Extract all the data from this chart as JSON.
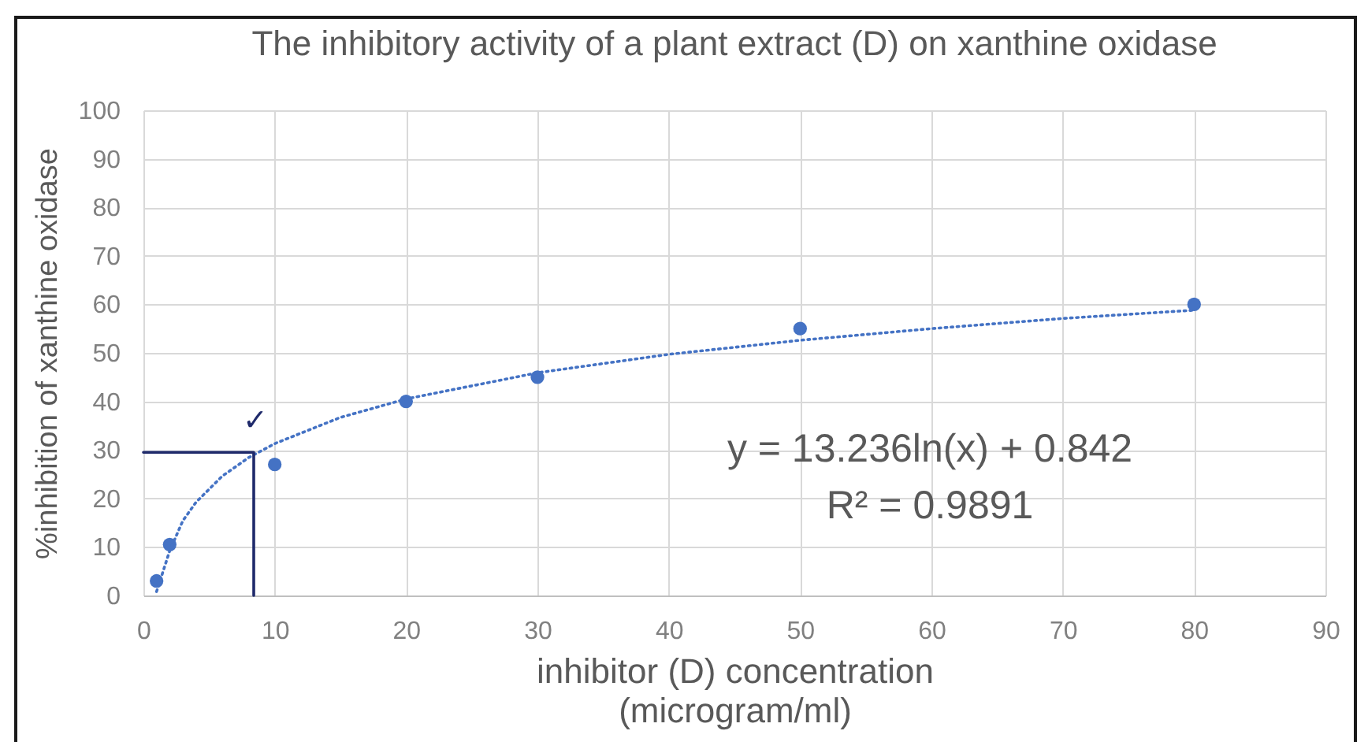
{
  "chart_data": {
    "type": "scatter",
    "title": "The inhibitory activity of a plant extract (D) on xanthine oxidase",
    "xlabel": "inhibitor (D) concentration\n(microgram/ml)",
    "ylabel": "%inhibition of xanthine oxidase",
    "x": [
      1,
      2,
      10,
      20,
      30,
      50,
      80
    ],
    "series": [
      {
        "color": "#4472c4",
        "marker": "circle",
        "values": [
          3,
          10.5,
          27,
          40,
          45,
          55,
          60
        ]
      },
      {
        "type": "line",
        "color": "#4472c4",
        "marker": "none",
        "line_style": "dotted",
        "x": [
          1,
          2,
          3,
          4,
          6,
          8,
          10,
          15,
          20,
          30,
          40,
          50,
          60,
          70,
          80
        ],
        "values": [
          0.8,
          9.2,
          15.4,
          19.2,
          24.6,
          28.4,
          31.3,
          36.7,
          40.5,
          45.9,
          49.7,
          52.6,
          55.0,
          57.1,
          58.8
        ]
      },
      {
        "type": "line",
        "color": "#1f2a6b",
        "marker": "none",
        "line_style": "solid",
        "x": [
          0,
          8.4,
          8.4
        ],
        "values": [
          29.5,
          29.5,
          0
        ]
      }
    ],
    "xlim": [
      0,
      90
    ],
    "xticks": [
      0,
      10,
      20,
      30,
      40,
      50,
      60,
      70,
      80,
      90
    ],
    "ylim": [
      0,
      100
    ],
    "yticks": [
      0,
      10,
      20,
      30,
      40,
      50,
      60,
      70,
      80,
      90,
      100
    ],
    "grid": true,
    "annotations": [
      "✓",
      "y = 13.236ln(x) + 0.842",
      "R² = 0.9891"
    ]
  }
}
